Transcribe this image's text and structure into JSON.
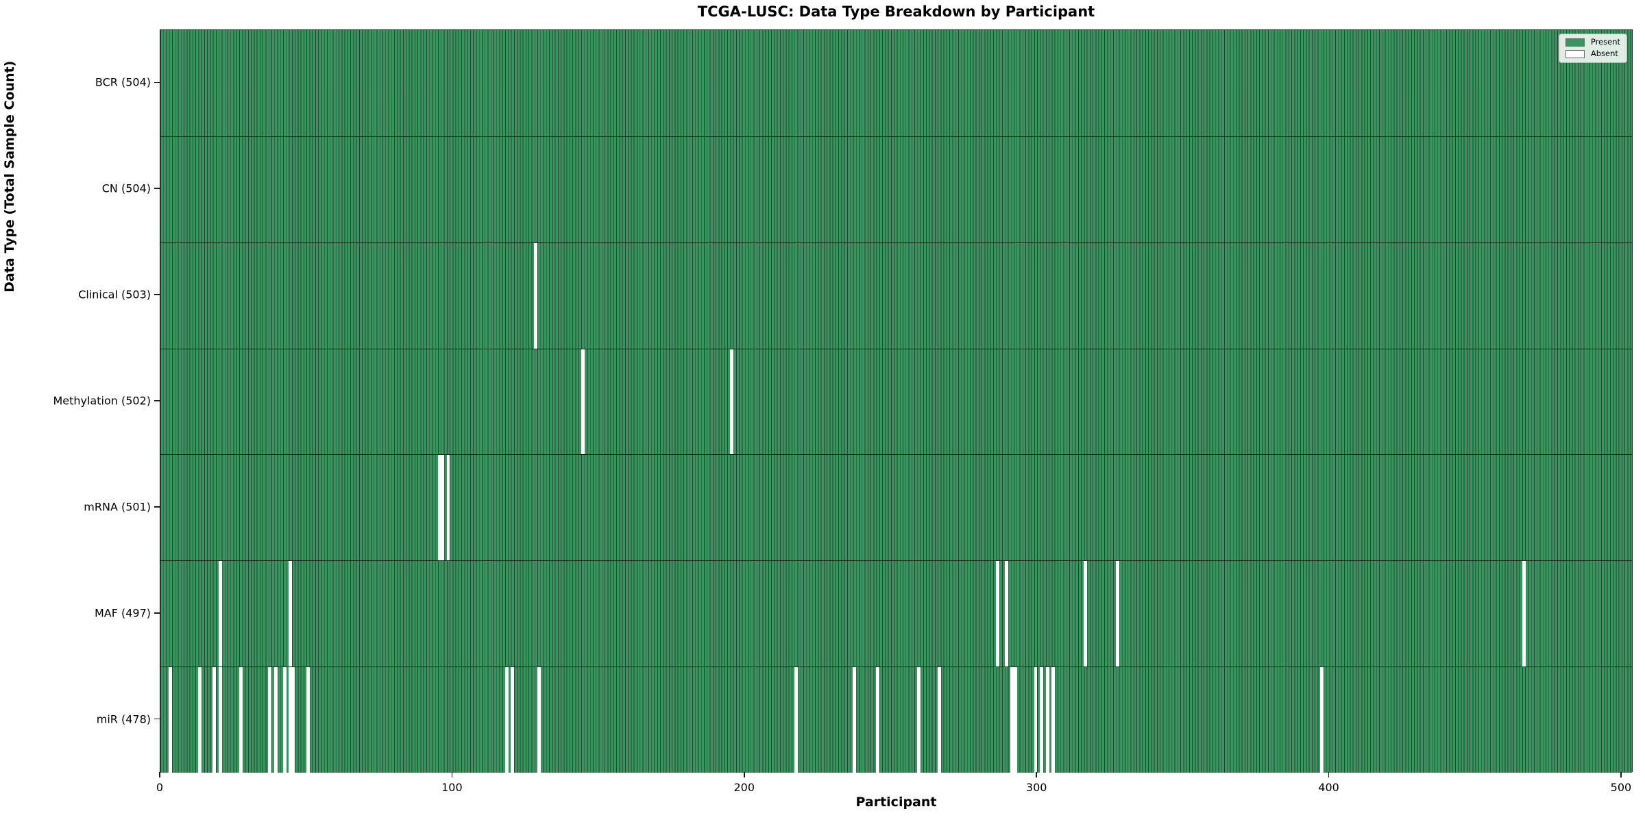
{
  "title": "TCGA-LUSC: Data Type Breakdown by Participant",
  "axes": {
    "xlabel": "Participant",
    "ylabel": "Data Type (Total Sample Count)"
  },
  "legend": {
    "entries": [
      {
        "label": "Present",
        "color": "#3b9360"
      },
      {
        "label": "Absent",
        "color": "#ffffff"
      }
    ]
  },
  "colors": {
    "present_fill": "#3b9360",
    "bar_edge": "rgba(0,0,0,0.50)",
    "absent_fill": "#ffffff",
    "row_divider": "rgba(0,0,0,0.75)"
  },
  "chart_data": {
    "type": "heatmap",
    "title": "TCGA-LUSC: Data Type Breakdown by Participant",
    "xlabel": "Participant",
    "ylabel": "Data Type (Total Sample Count)",
    "x_range": [
      0,
      504
    ],
    "x_ticks": [
      0,
      100,
      200,
      300,
      400,
      500
    ],
    "n_participants": 504,
    "grid": false,
    "legend_position": "upper right",
    "cell_states": {
      "present": 1,
      "absent": 0
    },
    "rows": [
      {
        "label": "BCR (504)",
        "data_type": "BCR",
        "total": 504,
        "absent_indices": []
      },
      {
        "label": "CN (504)",
        "data_type": "CN",
        "total": 504,
        "absent_indices": []
      },
      {
        "label": "Clinical (503)",
        "data_type": "Clinical",
        "total": 503,
        "absent_indices": [
          128
        ]
      },
      {
        "label": "Methylation (502)",
        "data_type": "Methylation",
        "total": 502,
        "absent_indices": [
          144,
          195
        ]
      },
      {
        "label": "mRNA (501)",
        "data_type": "mRNA",
        "total": 501,
        "absent_indices": [
          95,
          96,
          98
        ]
      },
      {
        "label": "MAF (497)",
        "data_type": "MAF",
        "total": 497,
        "absent_indices": [
          20,
          44,
          286,
          289,
          316,
          327,
          466
        ]
      },
      {
        "label": "miR (478)",
        "data_type": "miR",
        "total": 478,
        "absent_indices": [
          3,
          13,
          18,
          20,
          27,
          37,
          39,
          42,
          44,
          45,
          50,
          118,
          120,
          129,
          217,
          237,
          245,
          259,
          266,
          291,
          292,
          299,
          301,
          303,
          305,
          397
        ]
      }
    ]
  }
}
